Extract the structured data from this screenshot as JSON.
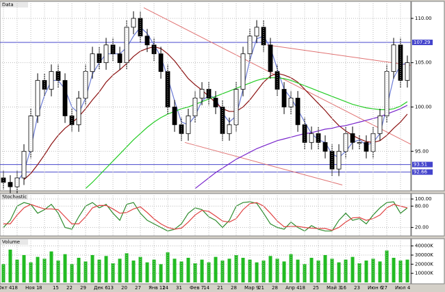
{
  "chart_data": [
    {
      "type": "candlestick",
      "title": "Data",
      "open": [
        92,
        91.5,
        91,
        92,
        95,
        99,
        103,
        102,
        104,
        103,
        99,
        98,
        101,
        104,
        106,
        105,
        107,
        106,
        105,
        109,
        110,
        108,
        107,
        106,
        104,
        100,
        98,
        97,
        99,
        101,
        102,
        101,
        100,
        97,
        98,
        102,
        106,
        108,
        109,
        107,
        104,
        102,
        100,
        101,
        98,
        96,
        97,
        96,
        95,
        93,
        95,
        97,
        96,
        96,
        95,
        97,
        99,
        104,
        107,
        103
      ],
      "high": [
        92.8,
        92.3,
        92.8,
        95.8,
        99.8,
        103.8,
        103.8,
        104.8,
        104.8,
        103.8,
        99.8,
        101.8,
        104.8,
        106.8,
        106.8,
        107.8,
        107.8,
        106.8,
        109.8,
        110.8,
        110.8,
        108.8,
        107.8,
        106.8,
        104.8,
        100.8,
        98.8,
        99.8,
        101.8,
        102.8,
        102.8,
        101.8,
        100.8,
        98.8,
        102.8,
        106.8,
        108.8,
        109.8,
        109.8,
        107.8,
        104.8,
        102.8,
        101.8,
        101.8,
        98.8,
        97.8,
        97.8,
        96.8,
        95.8,
        95.8,
        97.8,
        97.8,
        96.8,
        96.8,
        97.8,
        99.8,
        104.8,
        107.8,
        107.8,
        105.8
      ],
      "low": [
        90.7,
        90.2,
        90.2,
        91.2,
        94.2,
        98.2,
        101.2,
        101.2,
        102.2,
        98.2,
        97.2,
        97.2,
        100.2,
        103.2,
        104.2,
        104.2,
        105.2,
        104.2,
        104.2,
        108.2,
        107.2,
        106.2,
        105.2,
        103.2,
        99.2,
        97.2,
        96.2,
        96.2,
        98.2,
        100.2,
        100.2,
        99.2,
        96.2,
        96.2,
        97.2,
        101.2,
        105.2,
        107.2,
        106.2,
        103.2,
        101.2,
        99.2,
        99.2,
        97.2,
        95.2,
        95.2,
        95.2,
        94.2,
        92.2,
        92.2,
        94.2,
        95.2,
        95.2,
        94.2,
        94.2,
        96.2,
        98.2,
        103.2,
        102.2,
        102.2
      ],
      "close": [
        91.5,
        91,
        92,
        95,
        99,
        103,
        102,
        104,
        103,
        99,
        98,
        101,
        104,
        106,
        105,
        107,
        106,
        105,
        109,
        110,
        108,
        107,
        106,
        104,
        100,
        98,
        97,
        99,
        101,
        102,
        101,
        100,
        97,
        98,
        102,
        106,
        108,
        109,
        107,
        104,
        102,
        100,
        101,
        98,
        96,
        97,
        96,
        95,
        93,
        95,
        97,
        96,
        96,
        95,
        97,
        99,
        104,
        107,
        103,
        105
      ],
      "series": [
        {
          "color": "#6b7bd6",
          "values": [
            null,
            null,
            91.5,
            92.7,
            95.3,
            99,
            101.3,
            103,
            103,
            102,
            100,
            99.3,
            101,
            103.7,
            105,
            106,
            106,
            106,
            106.7,
            108,
            109,
            108.3,
            107,
            105.7,
            103.3,
            100.7,
            98.3,
            98,
            99,
            100.7,
            101.3,
            101,
            99.3,
            98.3,
            99,
            102,
            105.3,
            107.7,
            108,
            106.7,
            104.3,
            102,
            101,
            99.7,
            98.3,
            97,
            96.3,
            96,
            94.7,
            94.3,
            95,
            96,
            96.3,
            95.7,
            96,
            97,
            100,
            103.3,
            104.7,
            105
          ]
        },
        {
          "color": "#8b1010",
          "values": [
            null,
            null,
            null,
            91.8,
            92.5,
            93.5,
            94.6,
            95.8,
            96.8,
            97.6,
            98.2,
            98.9,
            99.8,
            100.8,
            101.7,
            102.8,
            103.6,
            104.2,
            104.9,
            105.7,
            106.3,
            106.6,
            106.8,
            106.6,
            106,
            105.2,
            104.2,
            103.2,
            102.5,
            101.9,
            101.2,
            100.5,
            99.8,
            99.5,
            99.5,
            100,
            100.8,
            101.8,
            102.8,
            103.5,
            103.8,
            103.6,
            103.3,
            102.8,
            102,
            101.2,
            100.4,
            99.6,
            98.7,
            97.9,
            97.3,
            96.8,
            96.4,
            96.1,
            96,
            96.2,
            96.8,
            97.6,
            98.3,
            99.2
          ]
        },
        {
          "color": "#22cc22",
          "values": [
            null,
            null,
            null,
            null,
            null,
            null,
            null,
            null,
            null,
            null,
            null,
            null,
            90.8,
            91.5,
            92.3,
            93.1,
            93.9,
            94.7,
            95.5,
            96.3,
            97,
            97.7,
            98.3,
            98.8,
            99.2,
            99.5,
            99.8,
            100,
            100.3,
            100.6,
            100.9,
            101.2,
            101.5,
            101.8,
            102.1,
            102.4,
            102.7,
            103,
            103.2,
            103.3,
            103.3,
            103.2,
            103,
            102.7,
            102.4,
            102.1,
            101.8,
            101.5,
            101.2,
            100.9,
            100.6,
            100.3,
            100.1,
            99.9,
            99.8,
            99.7,
            99.7,
            99.8,
            100.1,
            100.6
          ]
        },
        {
          "color": "#7722cc",
          "values": [
            null,
            null,
            null,
            null,
            null,
            null,
            null,
            null,
            null,
            null,
            null,
            null,
            null,
            null,
            null,
            null,
            null,
            null,
            null,
            null,
            null,
            null,
            null,
            null,
            null,
            null,
            null,
            null,
            90.8,
            91.4,
            92,
            92.6,
            93.1,
            93.6,
            94.1,
            94.5,
            94.9,
            95.3,
            95.6,
            95.9,
            96.2,
            96.4,
            96.6,
            96.8,
            97,
            97.1,
            97.3,
            97.5,
            97.6,
            97.8,
            97.9,
            98.1,
            98.3,
            98.5,
            98.7,
            98.9,
            99.2,
            99.5,
            99.8,
            100.2
          ]
        }
      ],
      "levels": [
        {
          "value": 107.29,
          "label": "107.29"
        },
        {
          "value": 93.51,
          "label": "93.51"
        },
        {
          "value": 92.66,
          "label": "92.66"
        }
      ],
      "trendlines": [
        {
          "from": [
            21,
            111.2
          ],
          "to": [
            60,
            95.8
          ]
        },
        {
          "from": [
            39,
            107
          ],
          "to": [
            60,
            104.7
          ]
        },
        {
          "from": [
            27,
            96
          ],
          "to": [
            50,
            91.2
          ]
        }
      ],
      "trendline_color": "#e07070",
      "level_color": "#4444cc",
      "ylim": [
        90.7,
        111.3
      ],
      "yticks": [
        {
          "value": 95,
          "label": "95.00"
        },
        {
          "value": 100,
          "label": "100.00"
        },
        {
          "value": 105,
          "label": "105.00"
        },
        {
          "value": 110,
          "label": "110.00"
        }
      ],
      "grid": true
    },
    {
      "type": "line",
      "title": "Stochastic",
      "series": [
        {
          "color": "#2a8a2a",
          "values": [
            20,
            40,
            80,
            90,
            85,
            60,
            70,
            85,
            60,
            20,
            15,
            50,
            80,
            90,
            75,
            85,
            60,
            40,
            85,
            90,
            60,
            40,
            30,
            20,
            10,
            15,
            30,
            60,
            75,
            70,
            50,
            40,
            20,
            40,
            80,
            90,
            92,
            88,
            60,
            30,
            20,
            15,
            35,
            20,
            10,
            25,
            15,
            10,
            10,
            40,
            60,
            40,
            45,
            30,
            55,
            75,
            90,
            92,
            60,
            75
          ]
        },
        {
          "color": "#e04040",
          "values": [
            30,
            30,
            55,
            75,
            85,
            78,
            72,
            72,
            70,
            50,
            30,
            30,
            50,
            75,
            82,
            82,
            72,
            60,
            62,
            72,
            78,
            62,
            44,
            30,
            20,
            15,
            18,
            35,
            55,
            68,
            65,
            52,
            38,
            35,
            45,
            70,
            87,
            90,
            80,
            60,
            38,
            22,
            23,
            23,
            20,
            18,
            17,
            17,
            12,
            20,
            35,
            47,
            48,
            40,
            45,
            55,
            75,
            85,
            80,
            75
          ]
        }
      ],
      "ylim": [
        0,
        100
      ],
      "yticks": [
        {
          "value": 20,
          "label": "20.00"
        },
        {
          "value": 80,
          "label": "80.00"
        },
        {
          "value": 100,
          "label": "100.00"
        }
      ],
      "grid": true
    },
    {
      "type": "bar",
      "title": "Volume",
      "categories": [
        "Окт 4",
        null,
        "18",
        null,
        "Ноя 1",
        null,
        "8",
        null,
        "15",
        null,
        "22",
        null,
        "29",
        null,
        "Дек 6",
        null,
        "13",
        null,
        "20",
        null,
        "27",
        null,
        "Янв 11",
        null,
        "24",
        null,
        "31",
        null,
        "Фев 7",
        null,
        "14",
        null,
        "21",
        null,
        "28",
        null,
        "Мар 9",
        null,
        "21",
        null,
        "28",
        null,
        "Апр 4",
        null,
        "18",
        null,
        "25",
        null,
        "Май 3",
        null,
        "16",
        null,
        "23",
        null,
        "Июн 6",
        null,
        "27",
        null,
        "Июл 4",
        null
      ],
      "values": [
        20000,
        36000,
        25000,
        30000,
        22000,
        28000,
        26000,
        34000,
        24000,
        31000,
        20000,
        27000,
        23000,
        30000,
        25000,
        29000,
        21000,
        26000,
        32000,
        24000,
        28000,
        22000,
        25000,
        20000,
        33000,
        26000,
        23000,
        27000,
        21000,
        25000,
        22000,
        28000,
        24000,
        26000,
        30000,
        27000,
        25000,
        22000,
        24000,
        29000,
        26000,
        23000,
        31000,
        25000,
        20000,
        27000,
        24000,
        30000,
        26000,
        22000,
        25000,
        28000,
        21000,
        24000,
        26000,
        23000,
        35000,
        27000,
        24000,
        25000
      ],
      "color": "#22bb22",
      "ylim": [
        0,
        42000
      ],
      "yticks": [
        {
          "value": 10000,
          "label": "10000K"
        },
        {
          "value": 20000,
          "label": "20000K"
        },
        {
          "value": 30000,
          "label": "30000K"
        },
        {
          "value": 40000,
          "label": "40000K"
        }
      ],
      "grid": true
    }
  ]
}
